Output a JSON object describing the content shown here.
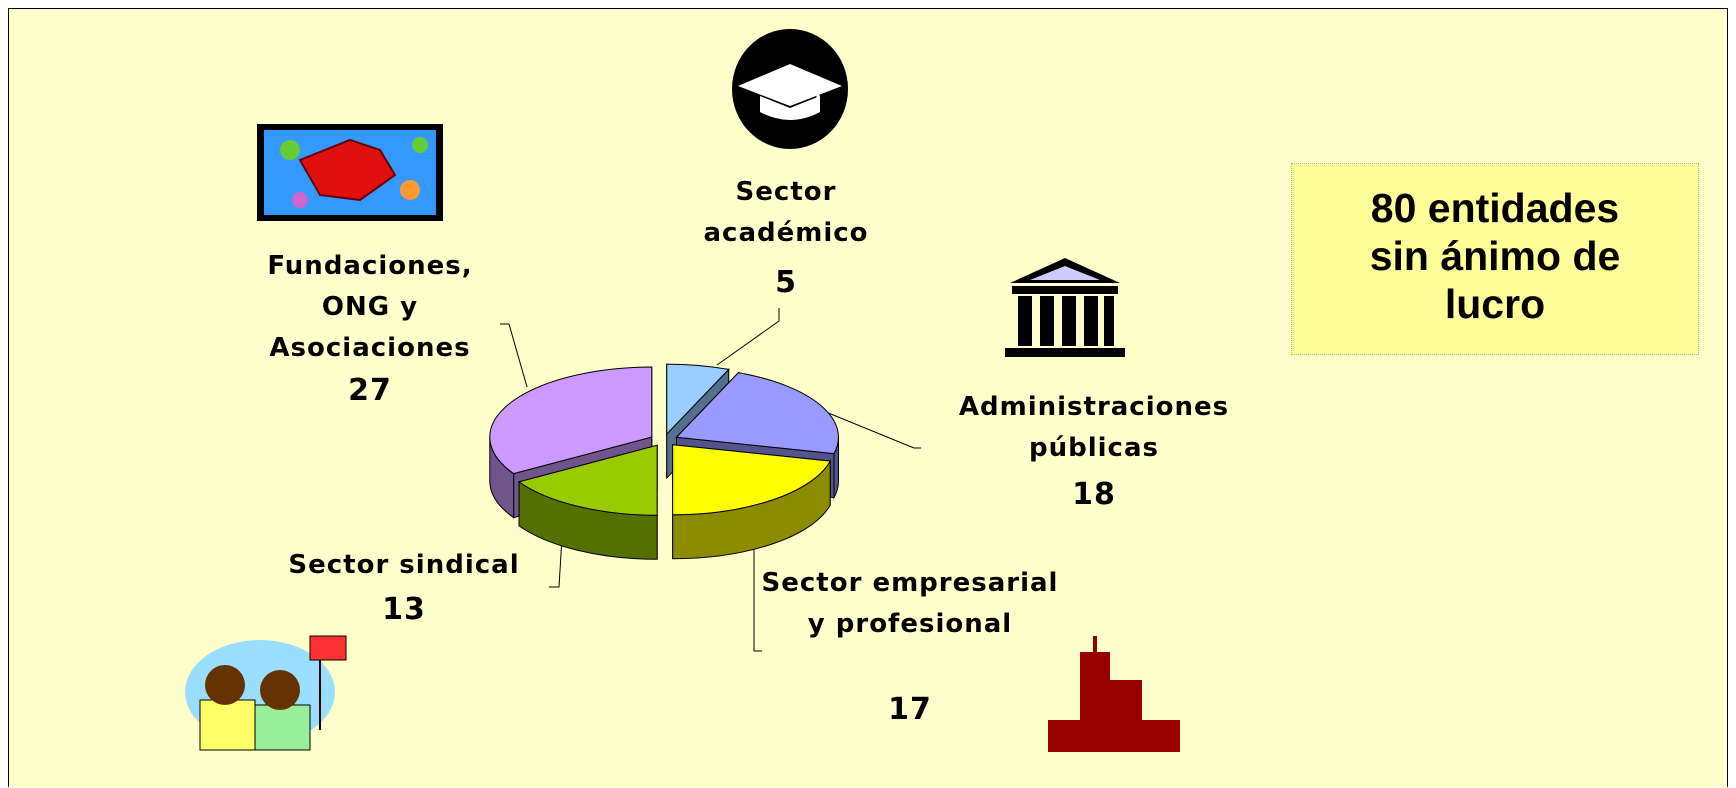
{
  "chart_data": {
    "type": "pie3d",
    "categories": [
      "Sector académico",
      "Administraciones públicas",
      "Sector empresarial y profesional",
      "Sector sindical",
      "Fundaciones, ONG y Asociaciones"
    ],
    "values": [
      5,
      18,
      17,
      13,
      27
    ],
    "colors": [
      "#99ccff",
      "#9999ff",
      "#ffff00",
      "#99cc00",
      "#cc99ff"
    ],
    "annotation": "80 entidades sin ánimo de lucro"
  }
}
